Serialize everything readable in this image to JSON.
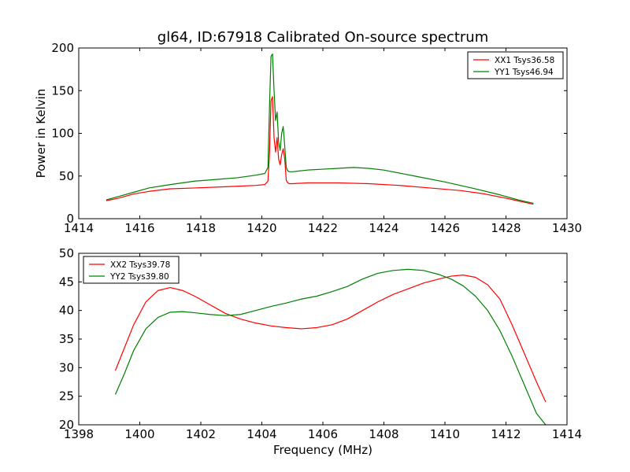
{
  "figure": {
    "title": "gl64, ID:67918 Calibrated On-source spectrum"
  },
  "chart_data": [
    {
      "type": "line",
      "title": "gl64, ID:67918 Calibrated On-source spectrum",
      "xlabel": "",
      "ylabel": "Power in Kelvin",
      "xlim": [
        1414,
        1430
      ],
      "ylim": [
        0,
        200
      ],
      "xticks": [
        1414,
        1416,
        1418,
        1420,
        1422,
        1424,
        1426,
        1428,
        1430
      ],
      "yticks": [
        0,
        50,
        100,
        150,
        200
      ],
      "legend_position": "top-right",
      "grid": false,
      "series": [
        {
          "name": "XX1 Tsys36.58",
          "color": "#ff0000",
          "x": [
            1414.9,
            1415.3,
            1415.8,
            1416.3,
            1417.0,
            1417.8,
            1418.5,
            1419.2,
            1419.8,
            1420.1,
            1420.2,
            1420.25,
            1420.3,
            1420.35,
            1420.4,
            1420.45,
            1420.5,
            1420.55,
            1420.6,
            1420.65,
            1420.7,
            1420.75,
            1420.8,
            1420.85,
            1420.9,
            1421.0,
            1421.5,
            1422.5,
            1423.5,
            1424.5,
            1425.5,
            1426.5,
            1427.3,
            1428.0,
            1428.5,
            1428.9
          ],
          "y": [
            21,
            24,
            29,
            32,
            35,
            36,
            37,
            38,
            39,
            40,
            44,
            75,
            138,
            143,
            95,
            78,
            95,
            70,
            63,
            75,
            82,
            70,
            45,
            42,
            41,
            41,
            42,
            42,
            41,
            39,
            36,
            33,
            29,
            24,
            20,
            17
          ]
        },
        {
          "name": "YY1 Tsys46.94",
          "color": "#008000",
          "x": [
            1414.9,
            1415.3,
            1415.8,
            1416.3,
            1417.0,
            1417.8,
            1418.5,
            1419.2,
            1419.8,
            1420.1,
            1420.2,
            1420.25,
            1420.3,
            1420.35,
            1420.4,
            1420.45,
            1420.5,
            1420.55,
            1420.6,
            1420.65,
            1420.7,
            1420.75,
            1420.8,
            1420.85,
            1420.9,
            1421.0,
            1421.5,
            1422.0,
            1422.5,
            1423.0,
            1423.5,
            1424.0,
            1425.0,
            1426.0,
            1427.0,
            1427.8,
            1428.4,
            1428.9
          ],
          "y": [
            22,
            26,
            31,
            36,
            40,
            44,
            46,
            48,
            51,
            53,
            60,
            130,
            190,
            193,
            150,
            115,
            125,
            90,
            80,
            100,
            108,
            85,
            60,
            56,
            55,
            55,
            57,
            58,
            59,
            60,
            59,
            57,
            50,
            43,
            35,
            28,
            22,
            18
          ]
        }
      ]
    },
    {
      "type": "line",
      "title": "",
      "xlabel": "Frequency (MHz)",
      "ylabel": "",
      "xlim": [
        1398,
        1414
      ],
      "ylim": [
        20,
        50
      ],
      "xticks": [
        1398,
        1400,
        1402,
        1404,
        1406,
        1408,
        1410,
        1412,
        1414
      ],
      "yticks": [
        20,
        25,
        30,
        35,
        40,
        45,
        50
      ],
      "legend_position": "top-left",
      "grid": false,
      "series": [
        {
          "name": "XX2 Tsys39.78",
          "color": "#ff0000",
          "x": [
            1399.2,
            1399.5,
            1399.8,
            1400.2,
            1400.6,
            1401.0,
            1401.4,
            1401.8,
            1402.3,
            1402.8,
            1403.3,
            1403.8,
            1404.3,
            1404.8,
            1405.3,
            1405.8,
            1406.3,
            1406.8,
            1407.3,
            1407.8,
            1408.3,
            1408.8,
            1409.3,
            1409.8,
            1410.2,
            1410.6,
            1411.0,
            1411.4,
            1411.8,
            1412.2,
            1412.6,
            1413.0,
            1413.3
          ],
          "y": [
            29.5,
            33.5,
            37.5,
            41.5,
            43.5,
            44.0,
            43.5,
            42.5,
            41.0,
            39.5,
            38.5,
            37.8,
            37.3,
            37.0,
            36.8,
            37.0,
            37.5,
            38.5,
            40.0,
            41.5,
            42.8,
            43.8,
            44.8,
            45.5,
            46.0,
            46.2,
            45.8,
            44.5,
            42.0,
            37.5,
            32.5,
            27.5,
            24.0
          ]
        },
        {
          "name": "YY2 Tsys39.80",
          "color": "#008000",
          "x": [
            1399.2,
            1399.5,
            1399.8,
            1400.2,
            1400.6,
            1401.0,
            1401.4,
            1401.8,
            1402.3,
            1402.8,
            1403.3,
            1403.8,
            1404.3,
            1404.8,
            1405.3,
            1405.8,
            1406.3,
            1406.8,
            1407.3,
            1407.8,
            1408.3,
            1408.8,
            1409.3,
            1409.8,
            1410.2,
            1410.6,
            1411.0,
            1411.4,
            1411.8,
            1412.2,
            1412.6,
            1413.0,
            1413.3
          ],
          "y": [
            25.3,
            29.0,
            33.0,
            36.8,
            38.8,
            39.7,
            39.8,
            39.6,
            39.3,
            39.1,
            39.3,
            40.0,
            40.7,
            41.3,
            42.0,
            42.5,
            43.3,
            44.2,
            45.5,
            46.5,
            47.0,
            47.2,
            47.0,
            46.3,
            45.5,
            44.3,
            42.5,
            40.0,
            36.5,
            32.0,
            27.0,
            22.0,
            20.0
          ]
        }
      ]
    }
  ]
}
